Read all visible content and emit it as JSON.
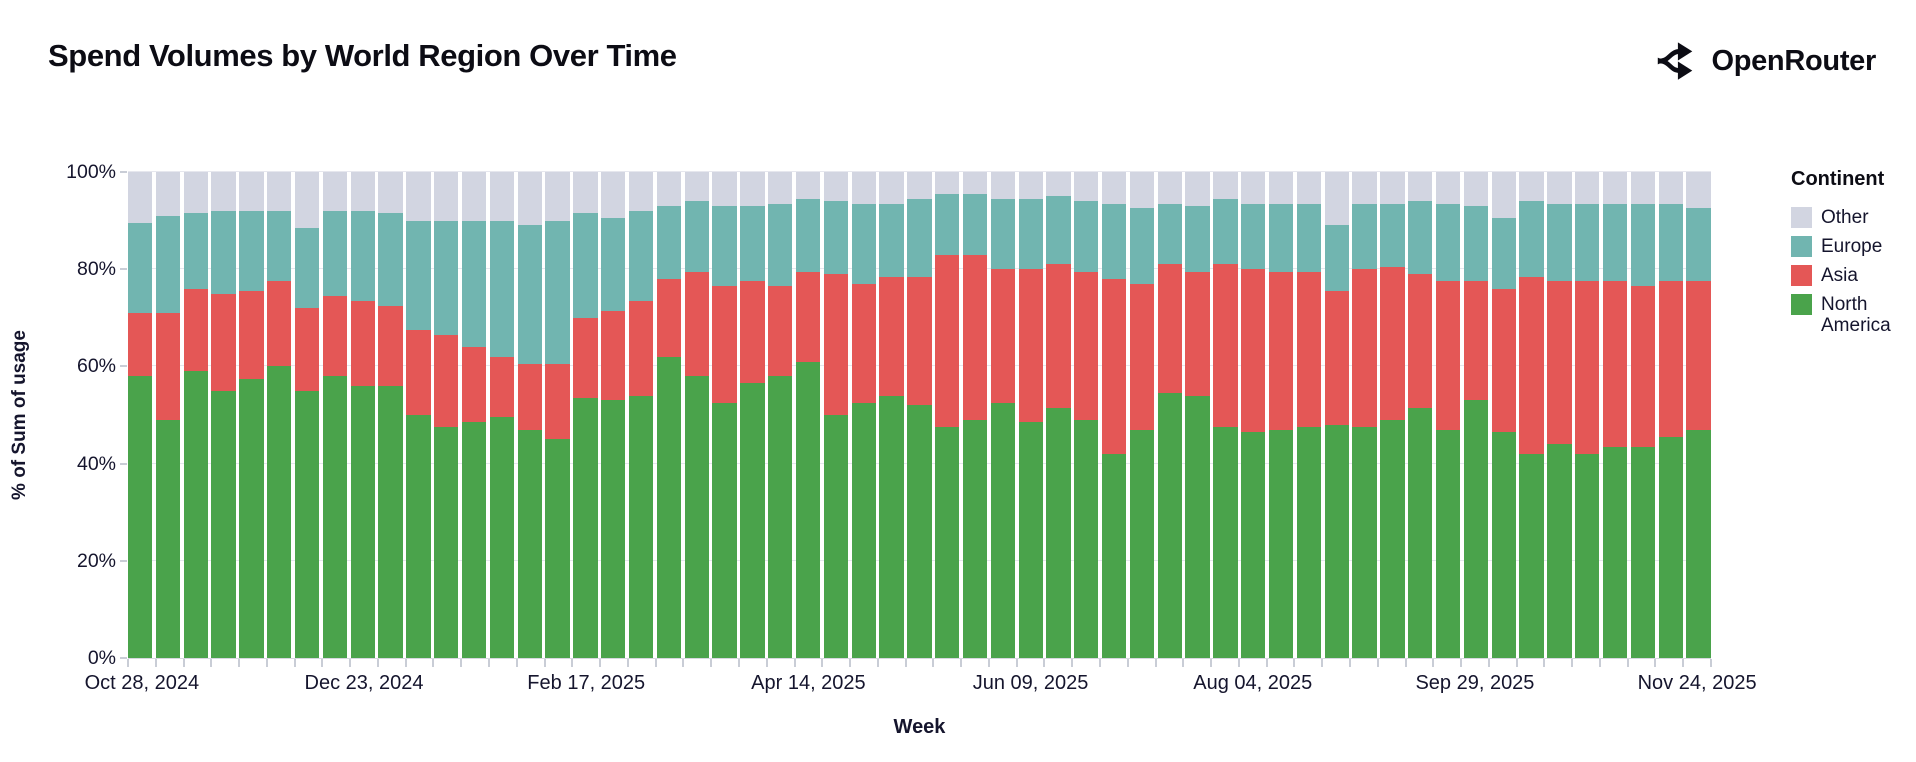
{
  "header": {
    "title": "Spend Volumes by World Region Over Time",
    "brand": "OpenRouter"
  },
  "chart_data": {
    "type": "bar",
    "stacked": true,
    "normalized_percent": true,
    "title": "Spend Volumes by World Region Over Time",
    "xlabel": "Week",
    "ylabel": "% of Sum of usage",
    "ylim": [
      0,
      100
    ],
    "grid": "horizontal",
    "num_bars": 57,
    "y_tick_labels": [
      "0%",
      "20%",
      "40%",
      "60%",
      "80%",
      "100%"
    ],
    "y_tick_values": [
      0,
      20,
      40,
      60,
      80,
      100
    ],
    "x_tick_labels": [
      {
        "index": 0,
        "label": "Oct 28, 2024"
      },
      {
        "index": 8,
        "label": "Dec 23, 2024"
      },
      {
        "index": 16,
        "label": "Feb 17, 2025"
      },
      {
        "index": 24,
        "label": "Apr 14, 2025"
      },
      {
        "index": 32,
        "label": "Jun 09, 2025"
      },
      {
        "index": 40,
        "label": "Aug 04, 2025"
      },
      {
        "index": 48,
        "label": "Sep 29, 2025"
      },
      {
        "index": 56,
        "label": "Nov 24, 2025"
      }
    ],
    "legend": {
      "title": "Continent",
      "position": "right",
      "items": [
        {
          "label": "Other",
          "color": "#d2d5e1"
        },
        {
          "label": "Europe",
          "color": "#71b5b0"
        },
        {
          "label": "Asia",
          "color": "#e45756"
        },
        {
          "label": "North America",
          "color": "#4aa34b"
        }
      ]
    },
    "series": [
      {
        "name": "North America",
        "color": "#4aa34b",
        "values": [
          58,
          49,
          59,
          55,
          57.5,
          60,
          55,
          58,
          56,
          56,
          50,
          47.5,
          48.5,
          49.5,
          47,
          45,
          53.5,
          53,
          54,
          62,
          58,
          52.5,
          56.5,
          58,
          61,
          50,
          52.5,
          54,
          52,
          47.5,
          49,
          52.5,
          48.5,
          51.5,
          49,
          42,
          47,
          54.5,
          54,
          47.5,
          46.5,
          47,
          47.5,
          48,
          47.5,
          49,
          51.5,
          47,
          53,
          46.5,
          42,
          44,
          42,
          43.5,
          43.5,
          45.5,
          47
        ]
      },
      {
        "name": "Asia",
        "color": "#e45756",
        "values": [
          13,
          22,
          17,
          20,
          18,
          17.5,
          17,
          16.5,
          17.5,
          16.5,
          17.5,
          19,
          15.5,
          12.5,
          13.5,
          15.5,
          16.5,
          18.5,
          19.5,
          16,
          21.5,
          24,
          21,
          18.5,
          18.5,
          29,
          24.5,
          24.5,
          26.5,
          35.5,
          34,
          27.5,
          31.5,
          29.5,
          30.5,
          36,
          30,
          26.5,
          25.5,
          33.5,
          33.5,
          32.5,
          32,
          27.5,
          32.5,
          31.5,
          27.5,
          30.5,
          24.5,
          29.5,
          36.5,
          33.5,
          35.5,
          34,
          33,
          32,
          30.5
        ]
      },
      {
        "name": "Europe",
        "color": "#71b5b0",
        "values": [
          18.5,
          20,
          15.5,
          17,
          16.5,
          14.5,
          16.5,
          17.5,
          18.5,
          19,
          22.5,
          23.5,
          26,
          28,
          28.5,
          29.5,
          21.5,
          19,
          18.5,
          15,
          14.5,
          16.5,
          15.5,
          17,
          15,
          15,
          16.5,
          15,
          16,
          12.5,
          12.5,
          14.5,
          14.5,
          14,
          14.5,
          15.5,
          15.5,
          12.5,
          13.5,
          13.5,
          13.5,
          14,
          14,
          13.5,
          13.5,
          13,
          15,
          16,
          15.5,
          14.5,
          15.5,
          16,
          16,
          16,
          17,
          16,
          15
        ]
      },
      {
        "name": "Other",
        "color": "#d2d5e1",
        "values": [
          10.5,
          9,
          8.5,
          8,
          8,
          8,
          11.5,
          8,
          8,
          8.5,
          10,
          10,
          10,
          10,
          11,
          10,
          8.5,
          9.5,
          8,
          7,
          6,
          7,
          7,
          6.5,
          5.5,
          6,
          6.5,
          6.5,
          5.5,
          4.5,
          4.5,
          5.5,
          5.5,
          5,
          6,
          6.5,
          7.5,
          6.5,
          7,
          5.5,
          6.5,
          6.5,
          6.5,
          11,
          6.5,
          6.5,
          6,
          6.5,
          7,
          9.5,
          6,
          6.5,
          6.5,
          6.5,
          6.5,
          6.5,
          7.5
        ]
      }
    ]
  }
}
